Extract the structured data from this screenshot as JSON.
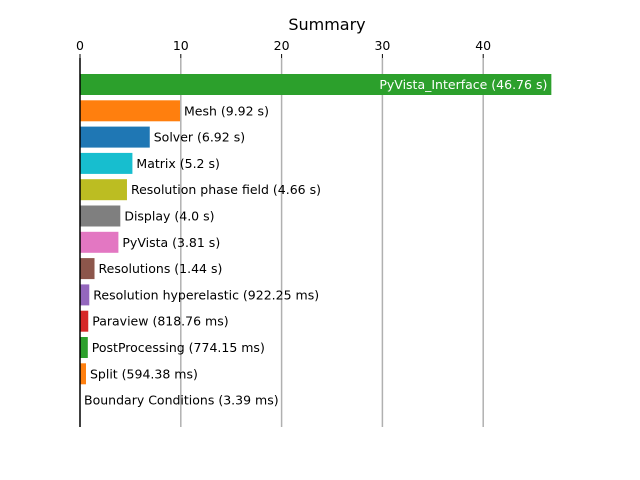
{
  "chart_data": {
    "type": "bar",
    "orientation": "horizontal",
    "title": "Summary",
    "xlabel": "",
    "ylabel": "",
    "xlim": [
      0,
      46.76
    ],
    "x_axis_position": "top",
    "grid": "vertical",
    "x_ticks": [
      0,
      10,
      20,
      30,
      40
    ],
    "x_tick_labels": [
      "0",
      "10",
      "20",
      "30",
      "40"
    ],
    "bars": [
      {
        "name": "PyVista_Interface",
        "value": 46.76,
        "label": "PyVista_Interface (46.76 s)",
        "color": "#2ca02c",
        "label_inside": true
      },
      {
        "name": "Mesh",
        "value": 9.92,
        "label": "Mesh (9.92 s)",
        "color": "#ff7f0e",
        "label_inside": false
      },
      {
        "name": "Solver",
        "value": 6.92,
        "label": "Solver (6.92 s)",
        "color": "#1f77b4",
        "label_inside": false
      },
      {
        "name": "Matrix",
        "value": 5.2,
        "label": "Matrix (5.2 s)",
        "color": "#17becf",
        "label_inside": false
      },
      {
        "name": "Resolution phase field",
        "value": 4.66,
        "label": "Resolution phase field (4.66 s)",
        "color": "#bcbd22",
        "label_inside": false
      },
      {
        "name": "Display",
        "value": 4.0,
        "label": "Display (4.0 s)",
        "color": "#7f7f7f",
        "label_inside": false
      },
      {
        "name": "PyVista",
        "value": 3.81,
        "label": "PyVista (3.81 s)",
        "color": "#e377c2",
        "label_inside": false
      },
      {
        "name": "Resolutions",
        "value": 1.44,
        "label": "Resolutions (1.44 s)",
        "color": "#8c564b",
        "label_inside": false
      },
      {
        "name": "Resolution hyperelastic",
        "value": 0.92225,
        "label": "Resolution hyperelastic (922.25 ms)",
        "color": "#9467bd",
        "label_inside": false
      },
      {
        "name": "Paraview",
        "value": 0.81876,
        "label": "Paraview (818.76 ms)",
        "color": "#d62728",
        "label_inside": false
      },
      {
        "name": "PostProcessing",
        "value": 0.77415,
        "label": "PostProcessing (774.15 ms)",
        "color": "#2ca02c",
        "label_inside": false
      },
      {
        "name": "Split",
        "value": 0.59438,
        "label": "Split (594.38 ms)",
        "color": "#ff7f0e",
        "label_inside": false
      },
      {
        "name": "Boundary Conditions",
        "value": 0.00339,
        "label": "Boundary Conditions (3.39 ms)",
        "color": "#1f77b4",
        "label_inside": false
      }
    ]
  }
}
